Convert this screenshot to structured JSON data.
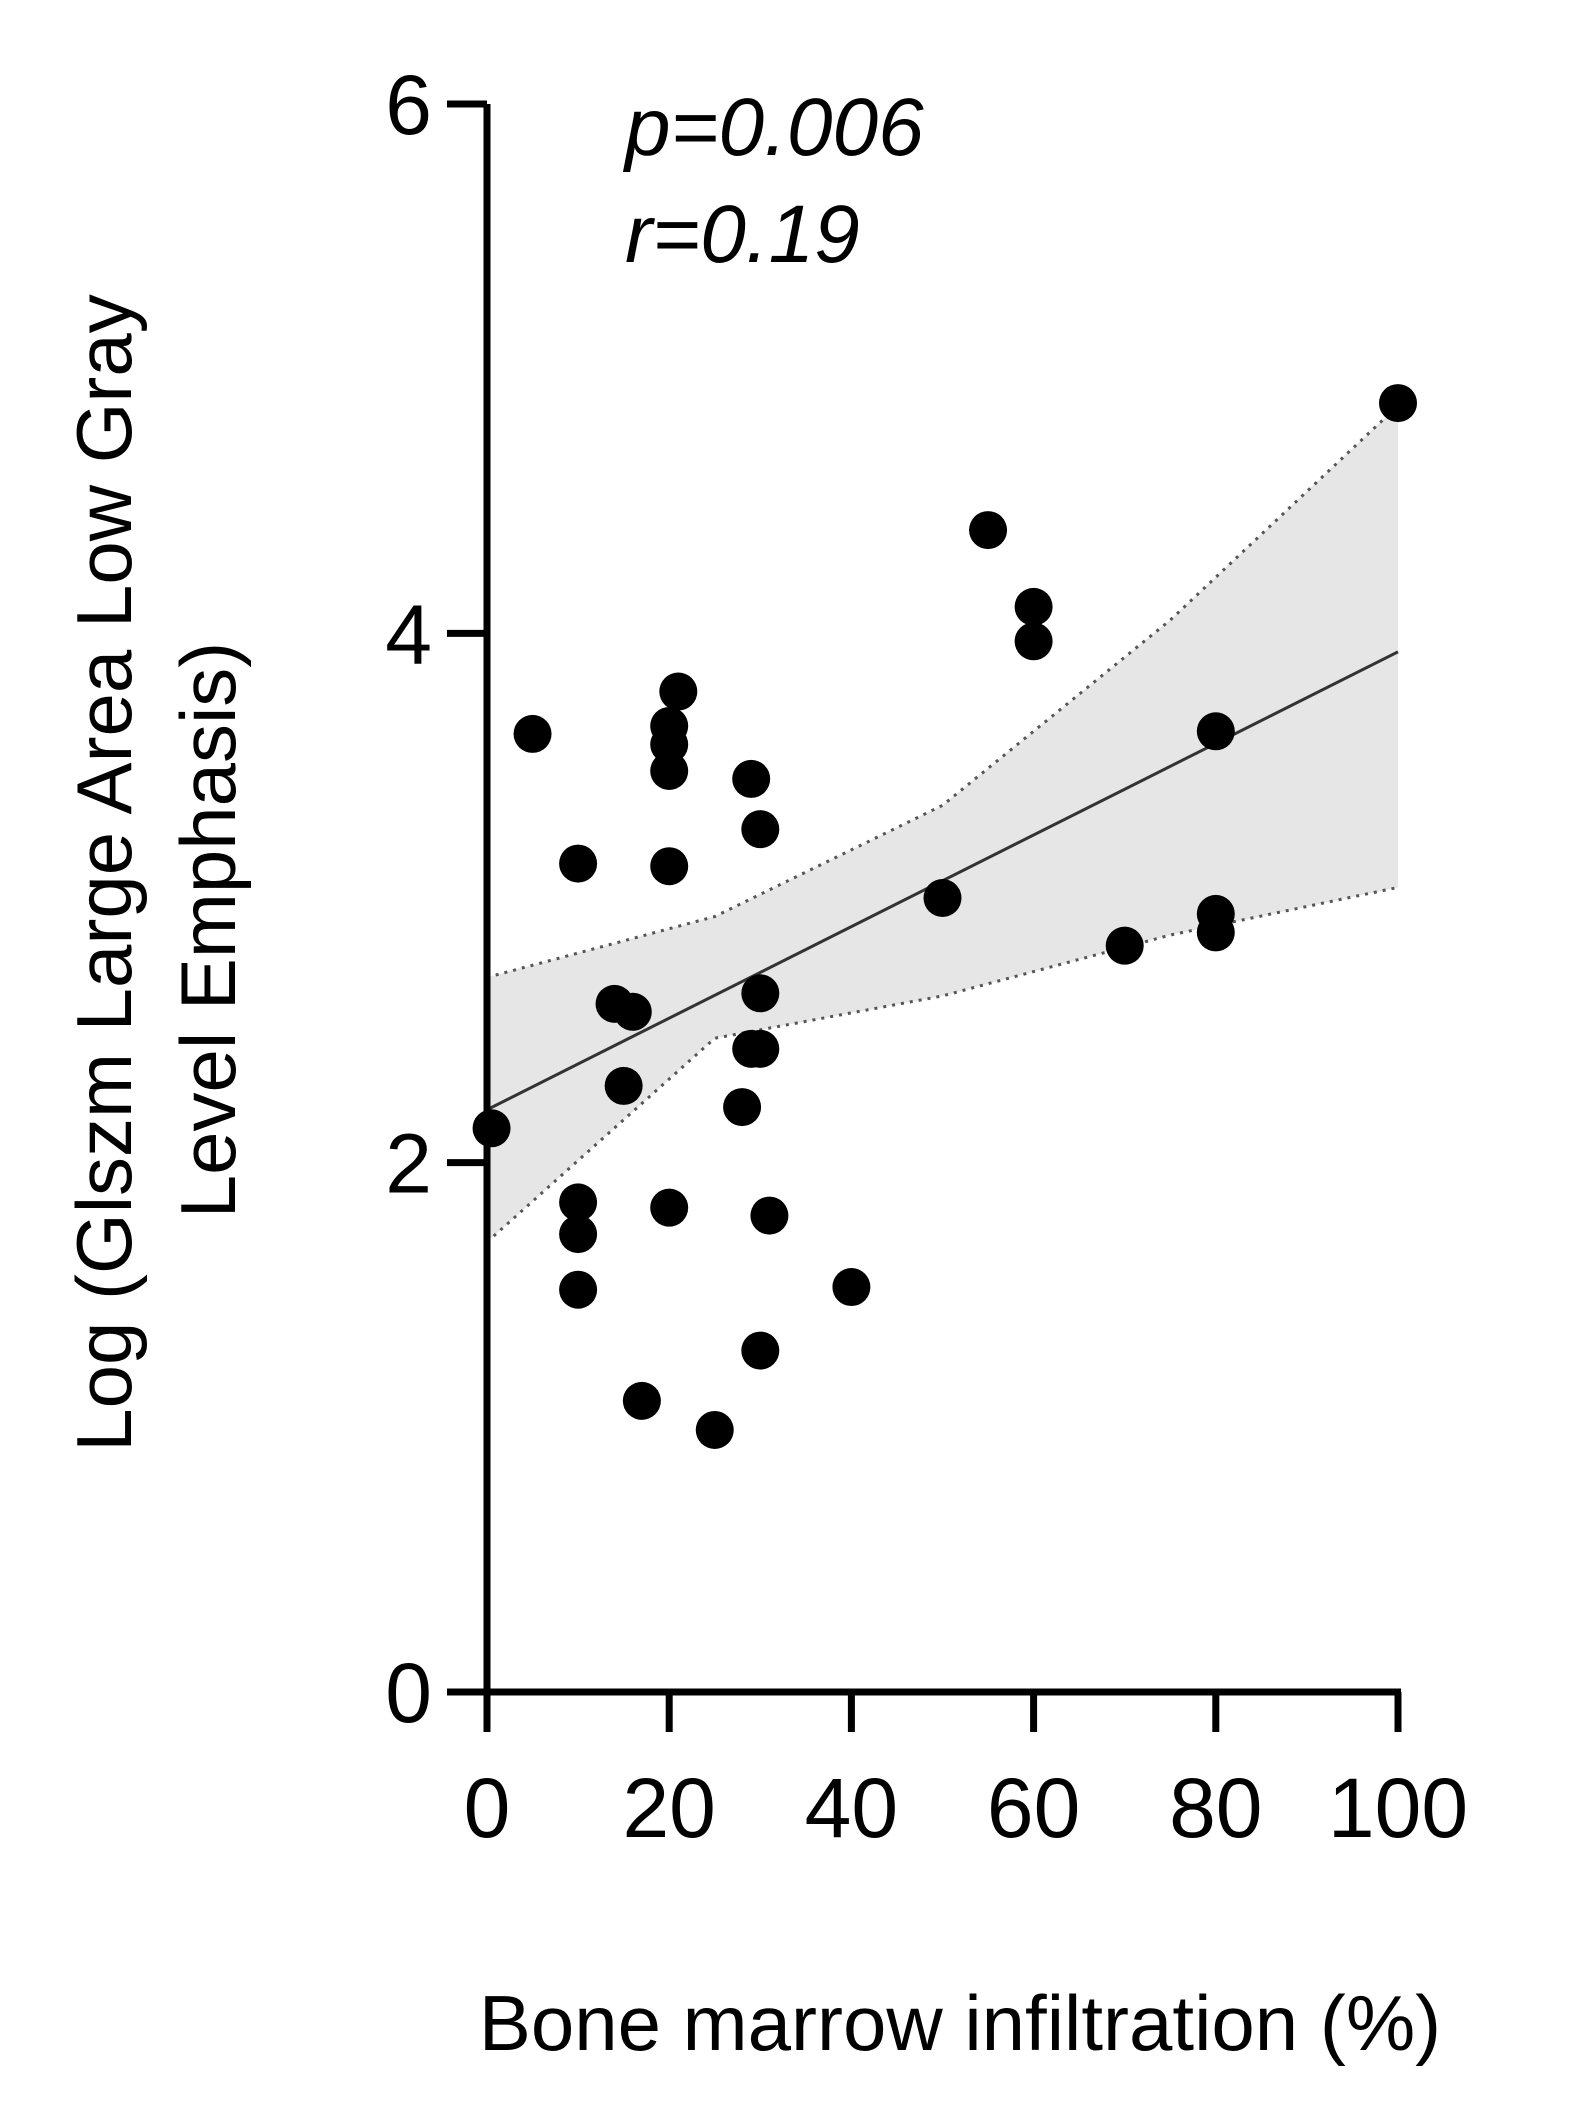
{
  "chart_data": {
    "type": "scatter",
    "title": "",
    "xlabel": "Bone marrow infiltration (%)",
    "ylabel_line1": "Log (Glszm Large Area Low Gray",
    "ylabel_line2": "Level Emphasis)",
    "xlim": [
      0,
      100
    ],
    "ylim": [
      0,
      6
    ],
    "xticks": [
      0,
      20,
      40,
      60,
      80,
      100
    ],
    "xtick_labels": [
      "0",
      "20",
      "40",
      "60",
      "80",
      "100"
    ],
    "yticks": [
      0,
      2,
      4,
      6
    ],
    "ytick_labels": [
      "0",
      "2",
      "4",
      "6"
    ],
    "grid": false,
    "annotations": [
      "p=0.006",
      "r=0.19"
    ],
    "points": [
      {
        "x": 0.5,
        "y": 2.13
      },
      {
        "x": 5,
        "y": 3.62
      },
      {
        "x": 10,
        "y": 3.13
      },
      {
        "x": 10,
        "y": 1.85
      },
      {
        "x": 10,
        "y": 1.73
      },
      {
        "x": 10,
        "y": 1.52
      },
      {
        "x": 14,
        "y": 2.6
      },
      {
        "x": 16,
        "y": 2.57
      },
      {
        "x": 15,
        "y": 2.29
      },
      {
        "x": 17,
        "y": 1.1
      },
      {
        "x": 20,
        "y": 3.65
      },
      {
        "x": 20,
        "y": 3.58
      },
      {
        "x": 20,
        "y": 3.48
      },
      {
        "x": 21,
        "y": 3.78
      },
      {
        "x": 20,
        "y": 3.12
      },
      {
        "x": 20,
        "y": 1.83
      },
      {
        "x": 25,
        "y": 0.99
      },
      {
        "x": 28,
        "y": 2.21
      },
      {
        "x": 29,
        "y": 3.45
      },
      {
        "x": 29,
        "y": 2.43
      },
      {
        "x": 30,
        "y": 2.43
      },
      {
        "x": 30,
        "y": 2.64
      },
      {
        "x": 30,
        "y": 3.26
      },
      {
        "x": 30,
        "y": 1.29
      },
      {
        "x": 31,
        "y": 1.8
      },
      {
        "x": 40,
        "y": 1.53
      },
      {
        "x": 50,
        "y": 3.0
      },
      {
        "x": 55,
        "y": 4.39
      },
      {
        "x": 60,
        "y": 4.1
      },
      {
        "x": 60,
        "y": 3.97
      },
      {
        "x": 70,
        "y": 2.82
      },
      {
        "x": 80,
        "y": 3.63
      },
      {
        "x": 80,
        "y": 2.94
      },
      {
        "x": 80,
        "y": 2.87
      },
      {
        "x": 100,
        "y": 4.87
      }
    ],
    "fit_line": {
      "x": [
        0,
        100
      ],
      "y": [
        2.2,
        3.93
      ]
    },
    "confidence_band": {
      "x": [
        0,
        25,
        50,
        75,
        100
      ],
      "upper": [
        2.7,
        2.93,
        3.35,
        4.05,
        4.86
      ],
      "lower": [
        1.7,
        2.47,
        2.63,
        2.86,
        3.04
      ]
    },
    "colors": {
      "points": "#000000",
      "fit_line": "#333333",
      "band_fill": "#e6e6e6",
      "band_edge": "#555555"
    }
  }
}
